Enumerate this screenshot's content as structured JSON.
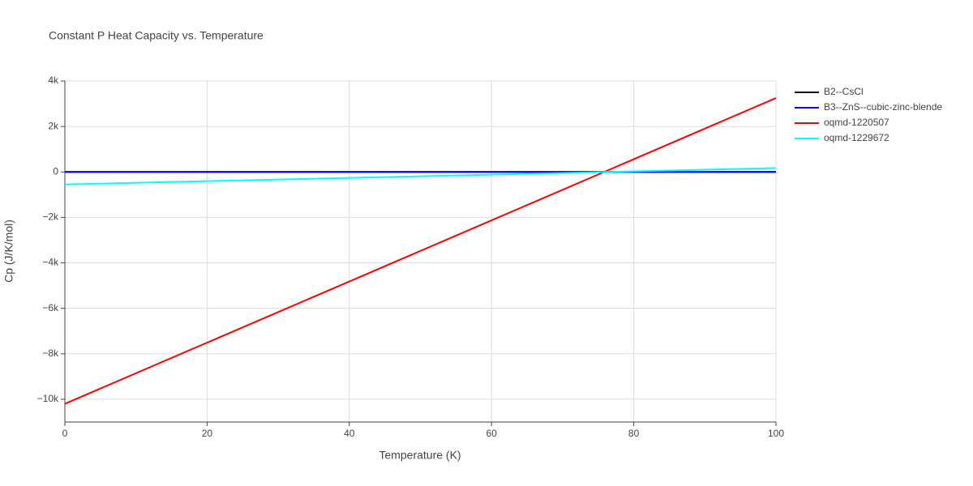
{
  "chart_data": {
    "type": "line",
    "title": "Constant P Heat Capacity vs. Temperature",
    "x_label": "Temperature (K)",
    "y_label": "Cp (J/K/mol)",
    "x": [
      0,
      20,
      40,
      60,
      80,
      100
    ],
    "series": [
      {
        "name": "B2--CsCl",
        "color": "#000000",
        "values": [
          0,
          0,
          0,
          0,
          0,
          0
        ]
      },
      {
        "name": "B3--ZnS--cubic-zinc-blende",
        "color": "#0000ff",
        "values": [
          0,
          0,
          0,
          0,
          0,
          0
        ]
      },
      {
        "name": "oqmd-1220507",
        "color": "#ff0000",
        "values": [
          -10200,
          -7510,
          -4820,
          -2130,
          560,
          3250
        ]
      },
      {
        "name": "oqmd-1229672",
        "color": "#00ffff",
        "values": [
          -550,
          -406,
          -262,
          -118,
          26,
          170
        ]
      }
    ],
    "xlim": [
      0,
      100
    ],
    "xticks": [
      0,
      20,
      40,
      60,
      80,
      100
    ],
    "ylim": [
      -11000,
      4000
    ],
    "yticks": [
      {
        "value": -10000,
        "label": "−10k"
      },
      {
        "value": -8000,
        "label": "−8k"
      },
      {
        "value": -6000,
        "label": "−6k"
      },
      {
        "value": -4000,
        "label": "−4k"
      },
      {
        "value": -2000,
        "label": "−2k"
      },
      0,
      {
        "value": 2000,
        "label": "2k"
      },
      {
        "value": 4000,
        "label": "4k"
      }
    ],
    "grid": true,
    "legend": "right"
  }
}
